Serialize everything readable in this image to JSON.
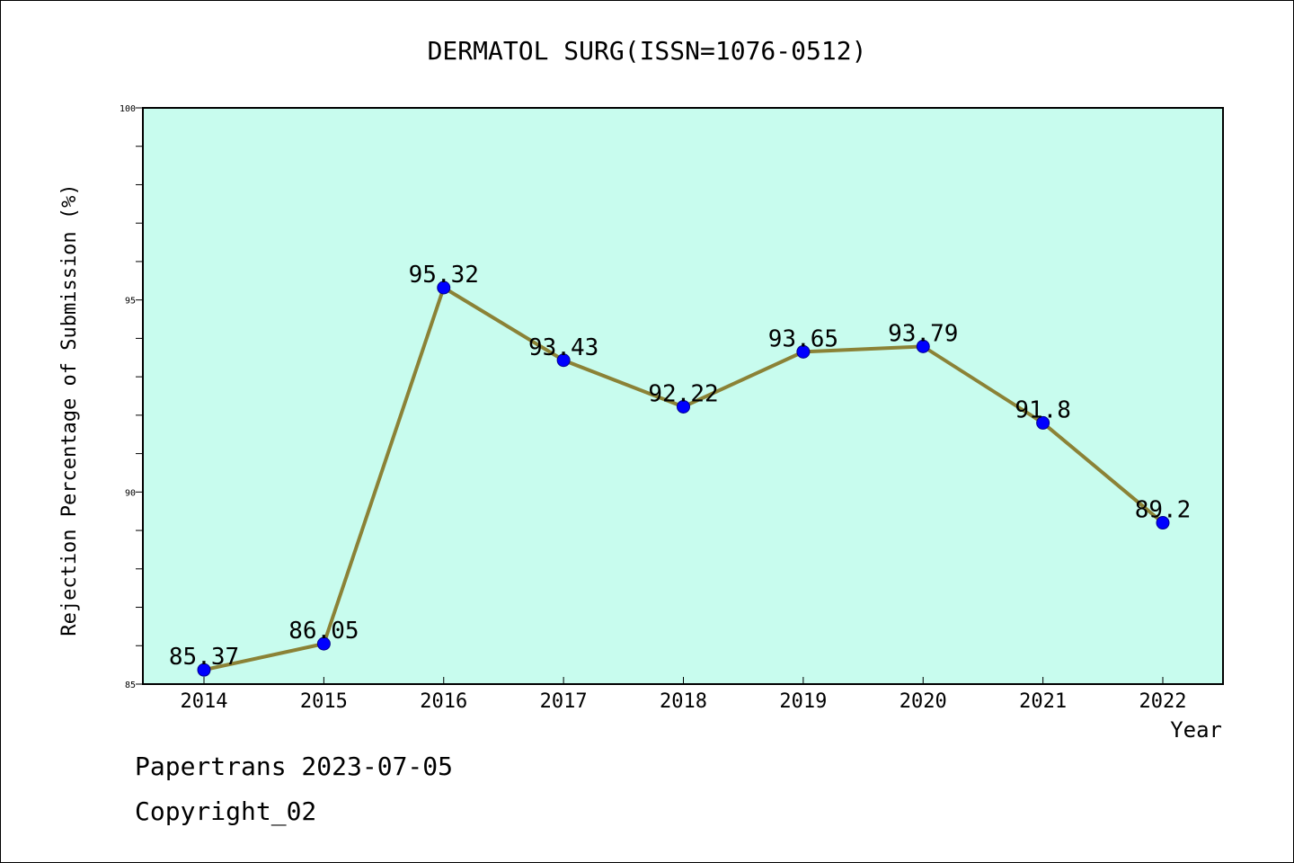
{
  "chart_data": {
    "type": "line",
    "title": "DERMATOL SURG(ISSN=1076-0512)",
    "xlabel": "Year",
    "ylabel": "Rejection Percentage of Submission (%)",
    "categories": [
      "2014",
      "2015",
      "2016",
      "2017",
      "2018",
      "2019",
      "2020",
      "2021",
      "2022"
    ],
    "series": [
      {
        "values": [
          85.37,
          86.05,
          95.32,
          93.43,
          92.22,
          93.65,
          93.79,
          91.8,
          89.2
        ],
        "labels": [
          "85.37",
          "86.05",
          "95.32",
          "93.43",
          "92.22",
          "93.65",
          "93.79",
          "91.8",
          "89.2"
        ]
      }
    ],
    "ylim": [
      85,
      100
    ],
    "yticks": [
      "85",
      "90",
      "95",
      "100"
    ],
    "grid": false,
    "legend": "none",
    "colors": {
      "plot_background": "#c8fcee",
      "line": "#8b8236",
      "marker": "#0000ff"
    }
  },
  "footer": {
    "line1": "Papertrans 2023-07-05",
    "line2": "Copyright_02"
  }
}
